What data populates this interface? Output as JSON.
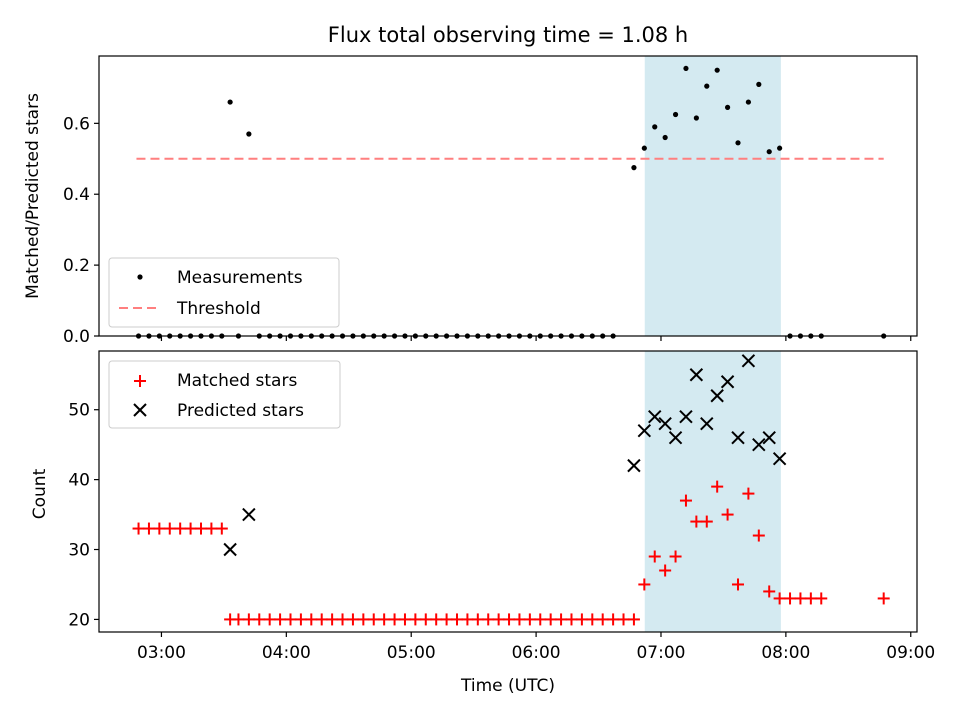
{
  "chart_data": [
    {
      "type": "scatter",
      "title": "Flux total observing time = 1.08 h",
      "xlabel": "",
      "ylabel": "Matched/Predicted stars",
      "xlim_hours": [
        2.5,
        9.05
      ],
      "ylim": [
        0,
        0.79
      ],
      "xticks": [
        "03:00",
        "04:00",
        "05:00",
        "06:00",
        "07:00",
        "08:00",
        "09:00"
      ],
      "yticks": [
        "0.0",
        "0.2",
        "0.4",
        "0.6"
      ],
      "legend_position": "lower-left",
      "highlight_span_hours": [
        6.87,
        7.96
      ],
      "highlight_color": "#d4eaf1",
      "series": [
        {
          "name": "Measurements",
          "marker": "dot",
          "color": "#000000",
          "points": [
            [
              "02:49",
              0
            ],
            [
              "02:54",
              0
            ],
            [
              "02:59",
              0
            ],
            [
              "03:04",
              0
            ],
            [
              "03:09",
              0
            ],
            [
              "03:14",
              0
            ],
            [
              "03:19",
              0
            ],
            [
              "03:24",
              0
            ],
            [
              "03:29",
              0
            ],
            [
              "03:33",
              0.66
            ],
            [
              "03:42",
              0.57
            ],
            [
              "03:37",
              0
            ],
            [
              "03:47",
              0
            ],
            [
              "03:52",
              0
            ],
            [
              "03:57",
              0
            ],
            [
              "04:02",
              0
            ],
            [
              "04:07",
              0
            ],
            [
              "04:12",
              0
            ],
            [
              "04:17",
              0
            ],
            [
              "04:22",
              0
            ],
            [
              "04:27",
              0
            ],
            [
              "04:32",
              0
            ],
            [
              "04:37",
              0
            ],
            [
              "04:42",
              0
            ],
            [
              "04:47",
              0
            ],
            [
              "04:52",
              0
            ],
            [
              "04:57",
              0
            ],
            [
              "05:02",
              0
            ],
            [
              "05:07",
              0
            ],
            [
              "05:12",
              0
            ],
            [
              "05:17",
              0
            ],
            [
              "05:22",
              0
            ],
            [
              "05:27",
              0
            ],
            [
              "05:32",
              0
            ],
            [
              "05:37",
              0
            ],
            [
              "05:42",
              0
            ],
            [
              "05:47",
              0
            ],
            [
              "05:52",
              0
            ],
            [
              "05:57",
              0
            ],
            [
              "06:02",
              0
            ],
            [
              "06:07",
              0
            ],
            [
              "06:12",
              0
            ],
            [
              "06:17",
              0
            ],
            [
              "06:22",
              0
            ],
            [
              "06:27",
              0
            ],
            [
              "06:32",
              0
            ],
            [
              "06:37",
              0
            ],
            [
              "06:47",
              0.475
            ],
            [
              "06:52",
              0.53
            ],
            [
              "06:57",
              0.59
            ],
            [
              "07:02",
              0.56
            ],
            [
              "07:07",
              0.625
            ],
            [
              "07:12",
              0.755
            ],
            [
              "07:17",
              0.615
            ],
            [
              "07:22",
              0.705
            ],
            [
              "07:27",
              0.75
            ],
            [
              "07:32",
              0.645
            ],
            [
              "07:37",
              0.545
            ],
            [
              "07:42",
              0.66
            ],
            [
              "07:47",
              0.71
            ],
            [
              "07:52",
              0.52
            ],
            [
              "07:57",
              0.53
            ],
            [
              "08:02",
              0
            ],
            [
              "08:07",
              0
            ],
            [
              "08:12",
              0
            ],
            [
              "08:17",
              0
            ],
            [
              "08:47",
              0
            ]
          ]
        },
        {
          "name": "Threshold",
          "line": "dashed",
          "color": "#ff7f7f",
          "x_range": [
            "02:48",
            "08:47"
          ],
          "value": 0.5
        }
      ]
    },
    {
      "type": "scatter",
      "title": "",
      "xlabel": "Time (UTC)",
      "ylabel": "Count",
      "xlim_hours": [
        2.5,
        9.05
      ],
      "ylim": [
        18.2,
        58.4
      ],
      "xticks": [
        "03:00",
        "04:00",
        "05:00",
        "06:00",
        "07:00",
        "08:00",
        "09:00"
      ],
      "yticks": [
        "20",
        "30",
        "40",
        "50"
      ],
      "legend_position": "upper-left",
      "highlight_span_hours": [
        6.87,
        7.96
      ],
      "highlight_color": "#d4eaf1",
      "series": [
        {
          "name": "Matched stars",
          "marker": "plus",
          "color": "#ff0000",
          "points": [
            [
              "02:49",
              33
            ],
            [
              "02:54",
              33
            ],
            [
              "02:59",
              33
            ],
            [
              "03:04",
              33
            ],
            [
              "03:09",
              33
            ],
            [
              "03:14",
              33
            ],
            [
              "03:19",
              33
            ],
            [
              "03:24",
              33
            ],
            [
              "03:29",
              33
            ],
            [
              "03:33",
              20
            ],
            [
              "03:37",
              20
            ],
            [
              "03:42",
              20
            ],
            [
              "03:47",
              20
            ],
            [
              "03:52",
              20
            ],
            [
              "03:57",
              20
            ],
            [
              "04:02",
              20
            ],
            [
              "04:07",
              20
            ],
            [
              "04:12",
              20
            ],
            [
              "04:17",
              20
            ],
            [
              "04:22",
              20
            ],
            [
              "04:27",
              20
            ],
            [
              "04:32",
              20
            ],
            [
              "04:37",
              20
            ],
            [
              "04:42",
              20
            ],
            [
              "04:47",
              20
            ],
            [
              "04:52",
              20
            ],
            [
              "04:57",
              20
            ],
            [
              "05:02",
              20
            ],
            [
              "05:07",
              20
            ],
            [
              "05:12",
              20
            ],
            [
              "05:17",
              20
            ],
            [
              "05:22",
              20
            ],
            [
              "05:27",
              20
            ],
            [
              "05:32",
              20
            ],
            [
              "05:37",
              20
            ],
            [
              "05:42",
              20
            ],
            [
              "05:47",
              20
            ],
            [
              "05:52",
              20
            ],
            [
              "05:57",
              20
            ],
            [
              "06:02",
              20
            ],
            [
              "06:07",
              20
            ],
            [
              "06:12",
              20
            ],
            [
              "06:17",
              20
            ],
            [
              "06:22",
              20
            ],
            [
              "06:27",
              20
            ],
            [
              "06:32",
              20
            ],
            [
              "06:37",
              20
            ],
            [
              "06:42",
              20
            ],
            [
              "06:47",
              20
            ],
            [
              "06:52",
              25
            ],
            [
              "06:57",
              29
            ],
            [
              "07:02",
              27
            ],
            [
              "07:07",
              29
            ],
            [
              "07:12",
              37
            ],
            [
              "07:17",
              34
            ],
            [
              "07:22",
              34
            ],
            [
              "07:27",
              39
            ],
            [
              "07:32",
              35
            ],
            [
              "07:37",
              25
            ],
            [
              "07:42",
              38
            ],
            [
              "07:47",
              32
            ],
            [
              "07:52",
              24
            ],
            [
              "07:57",
              23
            ],
            [
              "08:02",
              23
            ],
            [
              "08:07",
              23
            ],
            [
              "08:12",
              23
            ],
            [
              "08:17",
              23
            ],
            [
              "08:47",
              23
            ]
          ]
        },
        {
          "name": "Predicted stars",
          "marker": "x",
          "color": "#000000",
          "points": [
            [
              "03:33",
              30
            ],
            [
              "03:42",
              35
            ],
            [
              "06:47",
              42
            ],
            [
              "06:52",
              47
            ],
            [
              "06:57",
              49
            ],
            [
              "07:02",
              48
            ],
            [
              "07:07",
              46
            ],
            [
              "07:12",
              49
            ],
            [
              "07:17",
              55
            ],
            [
              "07:22",
              48
            ],
            [
              "07:27",
              52
            ],
            [
              "07:32",
              54
            ],
            [
              "07:37",
              46
            ],
            [
              "07:42",
              57
            ],
            [
              "07:47",
              45
            ],
            [
              "07:52",
              46
            ],
            [
              "07:57",
              43
            ]
          ]
        }
      ]
    }
  ]
}
